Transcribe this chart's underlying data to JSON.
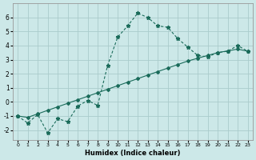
{
  "xlabel": "Humidex (Indice chaleur)",
  "background_color": "#cce8e8",
  "grid_color": "#aacccc",
  "line_color": "#1a6b5a",
  "xlim": [
    -0.5,
    23.5
  ],
  "ylim": [
    -2.7,
    7.0
  ],
  "xticks": [
    0,
    1,
    2,
    3,
    4,
    5,
    6,
    7,
    8,
    9,
    10,
    11,
    12,
    13,
    14,
    15,
    16,
    17,
    18,
    19,
    20,
    21,
    22,
    23
  ],
  "yticks": [
    -2,
    -1,
    0,
    1,
    2,
    3,
    4,
    5,
    6
  ],
  "line1_x": [
    0,
    1,
    2,
    3,
    4,
    5,
    6,
    7,
    8,
    9,
    10,
    11,
    12,
    13,
    14,
    15,
    16,
    17,
    18,
    19,
    20,
    21,
    22,
    23
  ],
  "line1_y": [
    -1.0,
    -1.5,
    -0.9,
    -2.2,
    -1.2,
    -1.4,
    -0.3,
    0.1,
    -0.25,
    2.6,
    4.6,
    5.4,
    6.3,
    6.0,
    5.4,
    5.3,
    4.5,
    3.9,
    3.3,
    3.2,
    3.5,
    3.6,
    4.0,
    3.6
  ],
  "line2_x": [
    0,
    1,
    2,
    3,
    4,
    5,
    6,
    7,
    8,
    9,
    10,
    11,
    12,
    13,
    14,
    15,
    16,
    17,
    18,
    19,
    20,
    21,
    22,
    23
  ],
  "line2_y": [
    -1.0,
    -1.1,
    -0.85,
    -0.6,
    -0.35,
    -0.1,
    0.15,
    0.4,
    0.65,
    0.9,
    1.15,
    1.4,
    1.65,
    1.9,
    2.15,
    2.4,
    2.65,
    2.9,
    3.1,
    3.3,
    3.5,
    3.62,
    3.75,
    3.6
  ]
}
